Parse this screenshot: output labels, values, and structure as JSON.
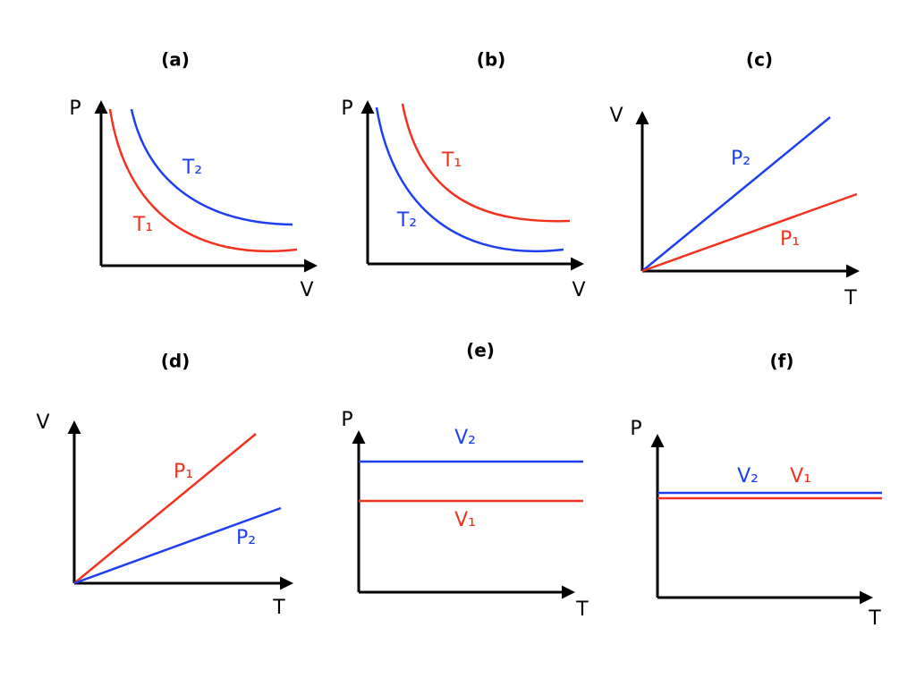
{
  "panels": [
    {
      "title": "(a)",
      "y_axis": "P",
      "x_axis": "V",
      "curves": [
        {
          "label": "T₂",
          "color": "#1e3ff0"
        },
        {
          "label": "T₁",
          "color": "#f0321e"
        }
      ]
    },
    {
      "title": "(b)",
      "y_axis": "P",
      "x_axis": "V",
      "curves": [
        {
          "label": "T₁",
          "color": "#f0321e"
        },
        {
          "label": "T₂",
          "color": "#1e3ff0"
        }
      ]
    },
    {
      "title": "(c)",
      "y_axis": "V",
      "x_axis": "T",
      "curves": [
        {
          "label": "P₂",
          "color": "#1e3ff0"
        },
        {
          "label": "P₁",
          "color": "#f0321e"
        }
      ]
    },
    {
      "title": "(d)",
      "y_axis": "V",
      "x_axis": "T",
      "curves": [
        {
          "label": "P₁",
          "color": "#f0321e"
        },
        {
          "label": "P₂",
          "color": "#1e3ff0"
        }
      ]
    },
    {
      "title": "(e)",
      "y_axis": "P",
      "x_axis": "T",
      "curves": [
        {
          "label": "V₂",
          "color": "#1e3ff0"
        },
        {
          "label": "V₁",
          "color": "#f0321e"
        }
      ]
    },
    {
      "title": "(f)",
      "y_axis": "P",
      "x_axis": "T",
      "curves": [
        {
          "label": "V₂",
          "color": "#1e3ff0"
        },
        {
          "label": "V₁",
          "color": "#f0321e"
        }
      ]
    }
  ]
}
